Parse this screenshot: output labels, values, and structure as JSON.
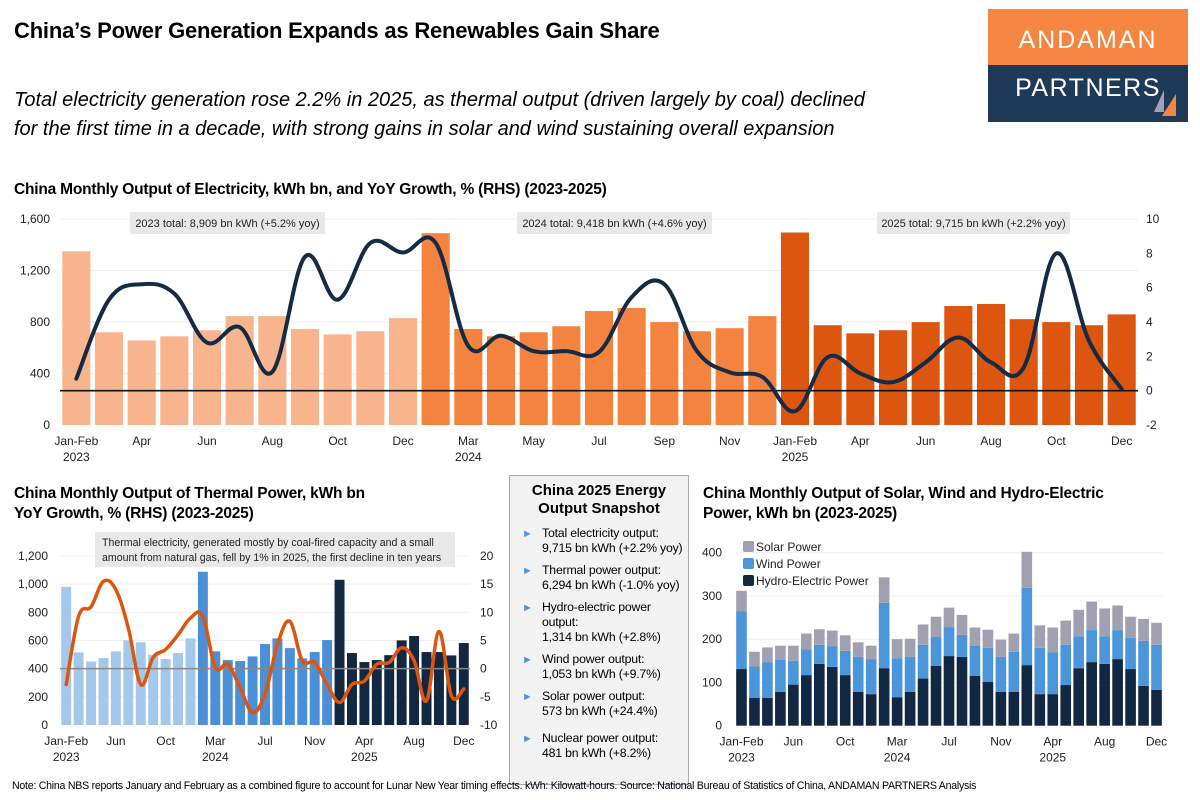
{
  "header": {
    "title": "China’s Power Generation Expands as Renewables Gain Share",
    "subtitle_line1": "Total electricity generation rose 2.2% in 2025, as thermal output (driven largely by coal) declined",
    "subtitle_line2": "for the first time in a decade, with strong gains in solar and wind sustaining overall expansion"
  },
  "logo": {
    "line1": "ANDAMAN",
    "line2": "PARTNERS",
    "colors": {
      "top": "#F58540",
      "bottom": "#1E3A57"
    }
  },
  "snapshot": {
    "title_line1": "China 2025 Energy",
    "title_line2": "Output Snapshot",
    "bullet_icon": "triangle-right-icon",
    "items": [
      {
        "line1": "Total electricity output:",
        "line2": "9,715 bn kWh (+2.2% yoy)"
      },
      {
        "line1": "Thermal power output:",
        "line2": "6,294 bn kWh (-1.0% yoy)"
      },
      {
        "line1": "Hydro-electric power",
        "line2": "output:",
        "line3": "1,314 bn kWh (+2.8%)"
      },
      {
        "line1": "Wind power output:",
        "line2": "1,053 bn kWh (+9.7%)"
      },
      {
        "line1": "Solar power output:",
        "line2": "573 bn kWh (+24.4%)"
      },
      {
        "line1": "Nuclear power output:",
        "line2": "481 bn kWh (+8.2%)"
      }
    ]
  },
  "footer": "Note: China NBS reports January and February as a combined figure to account for Lunar New Year timing effects. kWh: Kilowatt-hours. Source: National Bureau of Statistics of China, ANDAMAN PARTNERS Analysis",
  "chart_data": [
    {
      "type": "bar+line",
      "title": "China Monthly Output of Electricity, kWh bn, and YoY Growth, % (RHS) (2023-2025)",
      "months": [
        "Jan-Feb",
        "Mar",
        "Apr",
        "May",
        "Jun",
        "Jul",
        "Aug",
        "Sep",
        "Oct",
        "Nov",
        "Dec"
      ],
      "years": [
        "2023",
        "2024",
        "2025"
      ],
      "ylim": [
        0,
        1600
      ],
      "yticks": [
        "0",
        "400",
        "800",
        "1,200",
        "1,600"
      ],
      "y2lim": [
        -2,
        10
      ],
      "y2ticks": [
        "-2",
        "0",
        "2",
        "4",
        "6",
        "8",
        "10"
      ],
      "grid": true,
      "annotations": [
        "2023 total: 8,909 bn kWh (+5.2% yoy)",
        "2024 total: 9,418 bn kWh (+4.6% yoy)",
        "2025 total: 9,715 bn kWh (+2.2% yoy)"
      ],
      "bar_colors": [
        "#F8B48C",
        "#F4833F",
        "#DC560F"
      ],
      "line_color": "#142B45",
      "bars": [
        1349,
        720,
        657,
        689,
        736,
        846,
        846,
        746,
        704,
        728,
        830,
        1490,
        746,
        689,
        720,
        767,
        885,
        909,
        799,
        728,
        752,
        846,
        1495,
        775,
        712,
        736,
        799,
        924,
        940,
        822,
        799,
        775,
        859
      ],
      "yoy": [
        0.7,
        5.3,
        6.2,
        5.65,
        2.8,
        3.7,
        1.1,
        7.8,
        5.3,
        8.6,
        8.05,
        8.6,
        2.6,
        3.2,
        2.3,
        2.3,
        2.25,
        5.45,
        6.2,
        2.3,
        1.07,
        0.8,
        -1.2,
        1.95,
        1.0,
        0.5,
        1.65,
        3.1,
        1.65,
        1.35,
        8.0,
        2.9,
        0.1
      ]
    },
    {
      "type": "bar+line",
      "title_line1": "China Monthly Output of Thermal Power, kWh bn",
      "title_line2": "YoY Growth, % (RHS) (2023-2025)",
      "ylim": [
        0,
        1200
      ],
      "yticks": [
        "0",
        "200",
        "400",
        "600",
        "800",
        "1,000",
        "1,200"
      ],
      "y2lim": [
        -10,
        20
      ],
      "y2ticks": [
        "-10",
        "-5",
        "0",
        "5",
        "10",
        "15",
        "20"
      ],
      "grid": true,
      "annotation_line1": "Thermal electricity, generated mostly by coal-fired capacity and a small",
      "annotation_line2": "amount from natural gas, fell by 1% in 2025, the first decline in ten years",
      "bar_colors": [
        "#A4C8EC",
        "#4B8FD6",
        "#122842"
      ],
      "line_color": "#DC560F",
      "bars": [
        981,
        515,
        451,
        475,
        523,
        601,
        587,
        499,
        468,
        511,
        615,
        1088,
        523,
        461,
        454,
        487,
        575,
        615,
        546,
        473,
        518,
        603,
        1031,
        511,
        447,
        461,
        496,
        601,
        632,
        518,
        518,
        494,
        582
      ],
      "yoy": [
        -2.8,
        9.3,
        11,
        15.5,
        14,
        7.2,
        -2.8,
        2,
        3.4,
        6,
        9,
        9.3,
        0.2,
        0.8,
        -3.4,
        -7.8,
        -4.5,
        4.3,
        8.4,
        1.4,
        1.1,
        -2.8,
        -6,
        -2.8,
        -2.2,
        0.8,
        1.1,
        3.7,
        1.4,
        -5.7,
        6.6,
        -4.8,
        -3.6
      ]
    },
    {
      "type": "stacked-bar",
      "title_line1": "China Monthly Output of Solar, Wind and Hydro-Electric",
      "title_line2": "Power, kWh bn (2023-2025)",
      "ylim": [
        0,
        400
      ],
      "yticks": [
        "0",
        "100",
        "200",
        "300",
        "400"
      ],
      "grid": true,
      "legend_position": "top-left",
      "series": [
        {
          "name": "Hydro-Electric Power",
          "color": "#122842",
          "values": [
            131,
            64,
            64,
            78,
            95,
            117,
            143,
            136,
            117,
            78,
            73,
            133,
            66,
            78,
            109,
            138,
            161,
            159,
            115,
            101,
            78,
            78,
            140,
            73,
            73,
            94,
            133,
            147,
            143,
            154,
            131,
            92,
            83
          ]
        },
        {
          "name": "Wind Power",
          "color": "#4B96DB",
          "values": [
            134,
            73,
            83,
            74,
            55,
            60,
            44,
            48,
            56,
            81,
            81,
            151,
            90,
            81,
            78,
            67,
            67,
            51,
            70,
            79,
            81,
            93,
            179,
            107,
            97,
            93,
            74,
            74,
            64,
            67,
            72,
            104,
            104
          ]
        },
        {
          "name": "Solar Power",
          "color": "#A0A0B0",
          "values": [
            47,
            34,
            34,
            33,
            35,
            36,
            36,
            36,
            36,
            34,
            31,
            59,
            44,
            42,
            47,
            47,
            45,
            46,
            42,
            42,
            40,
            42,
            83,
            52,
            57,
            56,
            61,
            66,
            64,
            57,
            49,
            51,
            51
          ]
        }
      ]
    }
  ]
}
